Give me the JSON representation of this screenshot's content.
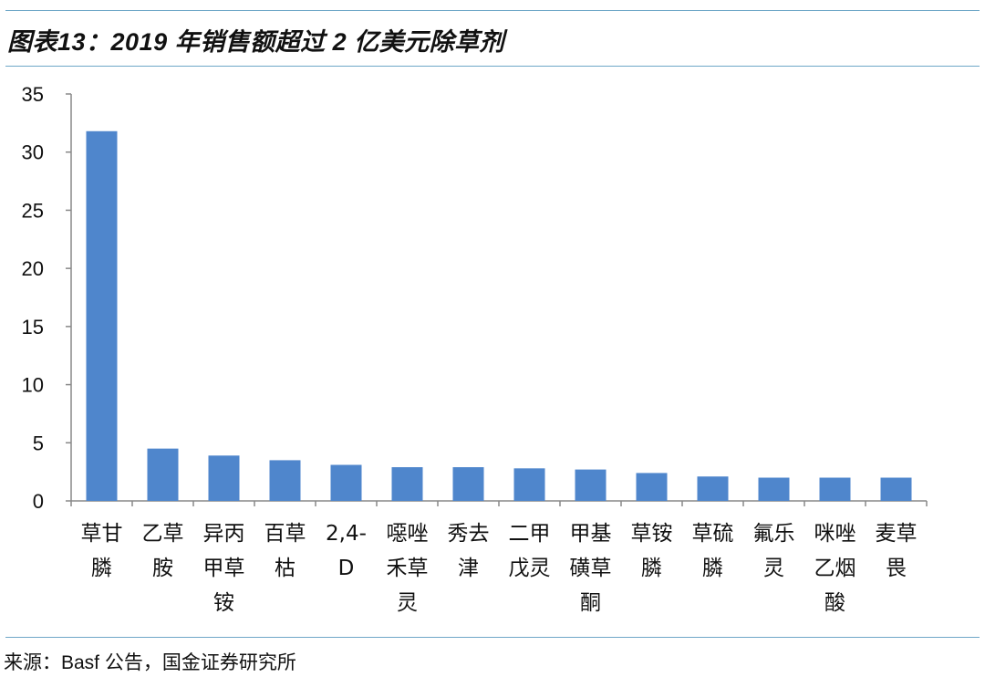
{
  "title": "图表13：2019 年销售额超过 2 亿美元除草剂",
  "source": "来源：Basf 公告，国金证券研究所",
  "chart_data": {
    "type": "bar",
    "categories": [
      "草甘膦",
      "乙草胺",
      "异丙甲草铵",
      "百草枯",
      "2,4-D",
      "噁唑禾草灵",
      "秀去津",
      "二甲戊灵",
      "甲基磺草酮",
      "草铵膦",
      "草硫膦",
      "氟乐灵",
      "咪唑乙烟酸",
      "麦草畏"
    ],
    "category_lines": [
      [
        "草甘",
        "膦"
      ],
      [
        "乙草",
        "胺"
      ],
      [
        "异丙",
        "甲草",
        "铵"
      ],
      [
        "百草",
        "枯"
      ],
      [
        "2,4-",
        "D"
      ],
      [
        "噁唑",
        "禾草",
        "灵"
      ],
      [
        "秀去",
        "津"
      ],
      [
        "二甲",
        "戊灵"
      ],
      [
        "甲基",
        "磺草",
        "酮"
      ],
      [
        "草铵",
        "膦"
      ],
      [
        "草硫",
        "膦"
      ],
      [
        "氟乐",
        "灵"
      ],
      [
        "咪唑",
        "乙烟",
        "酸"
      ],
      [
        "麦草",
        "畏"
      ]
    ],
    "values": [
      31.8,
      4.5,
      3.9,
      3.5,
      3.1,
      2.9,
      2.9,
      2.8,
      2.7,
      2.4,
      2.1,
      2.0,
      2.0,
      2.0
    ],
    "ylim": [
      0,
      35
    ],
    "yticks": [
      0,
      5,
      10,
      15,
      20,
      25,
      30,
      35
    ],
    "bar_color": "#4f86cc",
    "axis_color": "#888888",
    "grid": false,
    "legend": "none"
  }
}
